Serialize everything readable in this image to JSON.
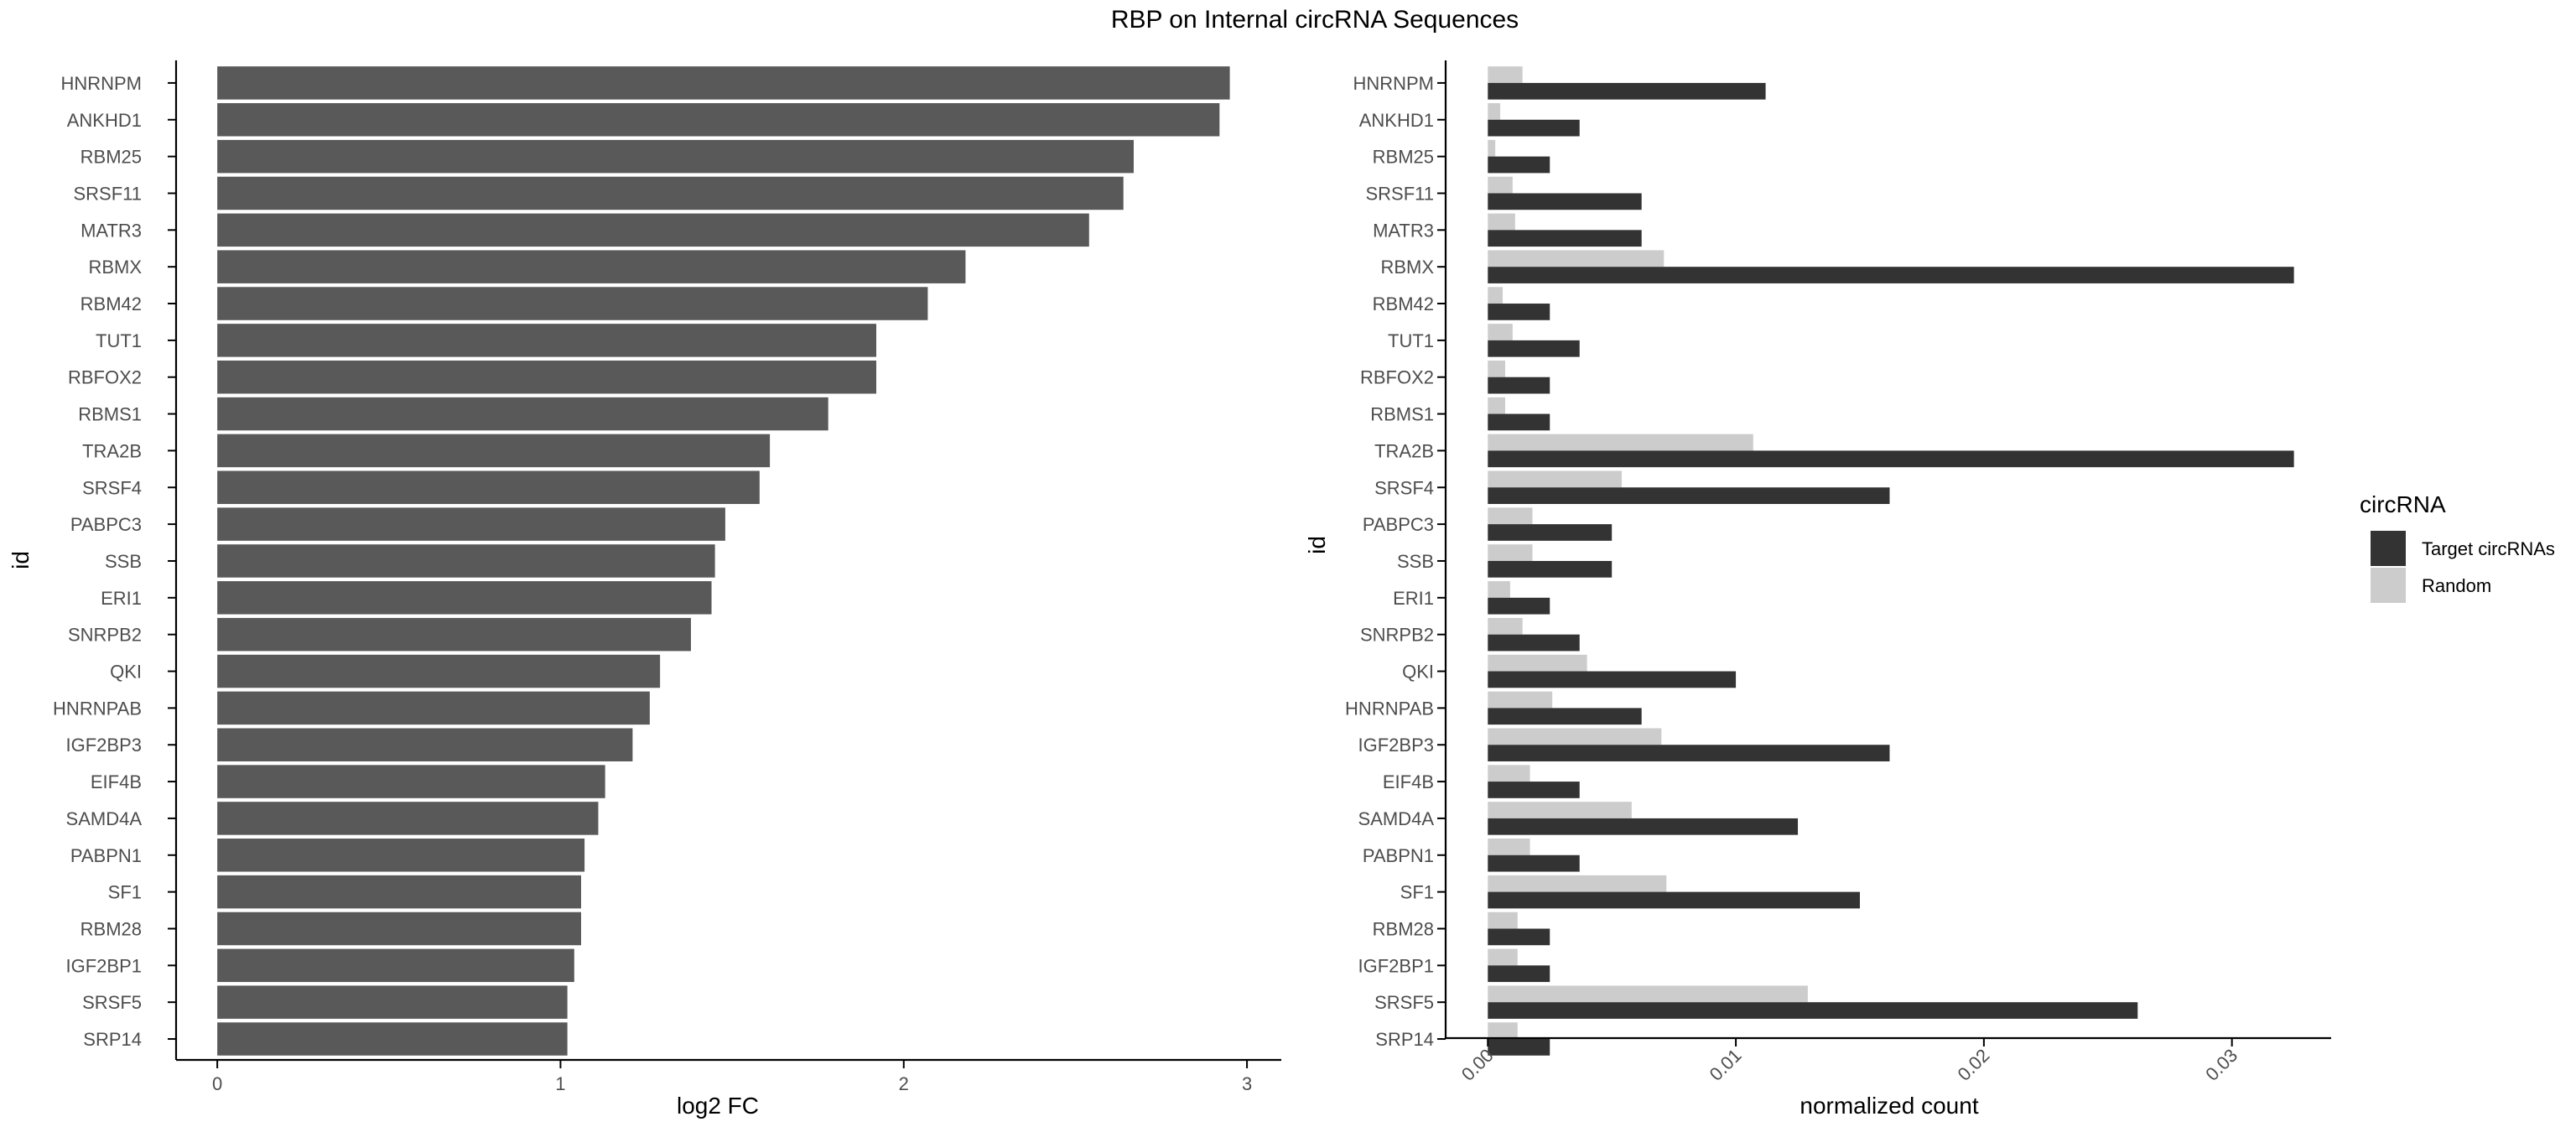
{
  "figure": {
    "title": "RBP on Internal circRNA Sequences"
  },
  "colors": {
    "left_bar": "#595959",
    "target": "#333333",
    "random": "#cccccc",
    "axis": "#000000"
  },
  "chart_data": [
    {
      "type": "bar",
      "orientation": "horizontal",
      "xlabel": "log2 FC",
      "ylabel": "id",
      "xlim": [
        -0.12,
        3.1
      ],
      "xticks": [
        0,
        1,
        2,
        3
      ],
      "xtick_labels": [
        "0",
        "1",
        "2",
        "3"
      ],
      "grid": false,
      "categories": [
        "HNRNPM",
        "ANKHD1",
        "RBM25",
        "SRSF11",
        "MATR3",
        "RBMX",
        "RBM42",
        "TUT1",
        "RBFOX2",
        "RBMS1",
        "TRA2B",
        "SRSF4",
        "PABPC3",
        "SSB",
        "ERI1",
        "SNRPB2",
        "QKI",
        "HNRNPAB",
        "IGF2BP3",
        "EIF4B",
        "SAMD4A",
        "PABPN1",
        "SF1",
        "RBM28",
        "IGF2BP1",
        "SRSF5",
        "SRP14"
      ],
      "values": [
        2.95,
        2.92,
        2.67,
        2.64,
        2.54,
        2.18,
        2.07,
        1.92,
        1.92,
        1.78,
        1.61,
        1.58,
        1.48,
        1.45,
        1.44,
        1.38,
        1.29,
        1.26,
        1.21,
        1.13,
        1.11,
        1.07,
        1.06,
        1.06,
        1.04,
        1.02,
        1.02
      ]
    },
    {
      "type": "bar",
      "orientation": "horizontal",
      "xlabel": "normalized count",
      "ylabel": "id",
      "xlim": [
        -0.0017,
        0.034
      ],
      "xticks": [
        0,
        0.01,
        0.02,
        0.03
      ],
      "xtick_labels": [
        "0.00",
        "0.01",
        "0.02",
        "0.03"
      ],
      "grid": false,
      "legend": {
        "title": "circRNA",
        "position": "right",
        "entries": [
          "Target circRNAs",
          "Random"
        ]
      },
      "categories": [
        "HNRNPM",
        "ANKHD1",
        "RBM25",
        "SRSF11",
        "MATR3",
        "RBMX",
        "RBM42",
        "TUT1",
        "RBFOX2",
        "RBMS1",
        "TRA2B",
        "SRSF4",
        "PABPC3",
        "SSB",
        "ERI1",
        "SNRPB2",
        "QKI",
        "HNRNPAB",
        "IGF2BP3",
        "EIF4B",
        "SAMD4A",
        "PABPN1",
        "SF1",
        "RBM28",
        "IGF2BP1",
        "SRSF5",
        "SRP14"
      ],
      "series": [
        {
          "name": "Target circRNAs",
          "values": [
            0.0112,
            0.0037,
            0.0025,
            0.0062,
            0.0062,
            0.0325,
            0.0025,
            0.0037,
            0.0025,
            0.0025,
            0.0325,
            0.0162,
            0.005,
            0.005,
            0.0025,
            0.0037,
            0.01,
            0.0062,
            0.0162,
            0.0037,
            0.0125,
            0.0037,
            0.015,
            0.0025,
            0.0025,
            0.0262,
            0.0025
          ]
        },
        {
          "name": "Random",
          "values": [
            0.0014,
            0.0005,
            0.0003,
            0.001,
            0.0011,
            0.0071,
            0.0006,
            0.001,
            0.0007,
            0.0007,
            0.0107,
            0.0054,
            0.0018,
            0.0018,
            0.0009,
            0.0014,
            0.004,
            0.0026,
            0.007,
            0.0017,
            0.0058,
            0.0017,
            0.0072,
            0.0012,
            0.0012,
            0.0129,
            0.0012
          ]
        }
      ]
    }
  ]
}
